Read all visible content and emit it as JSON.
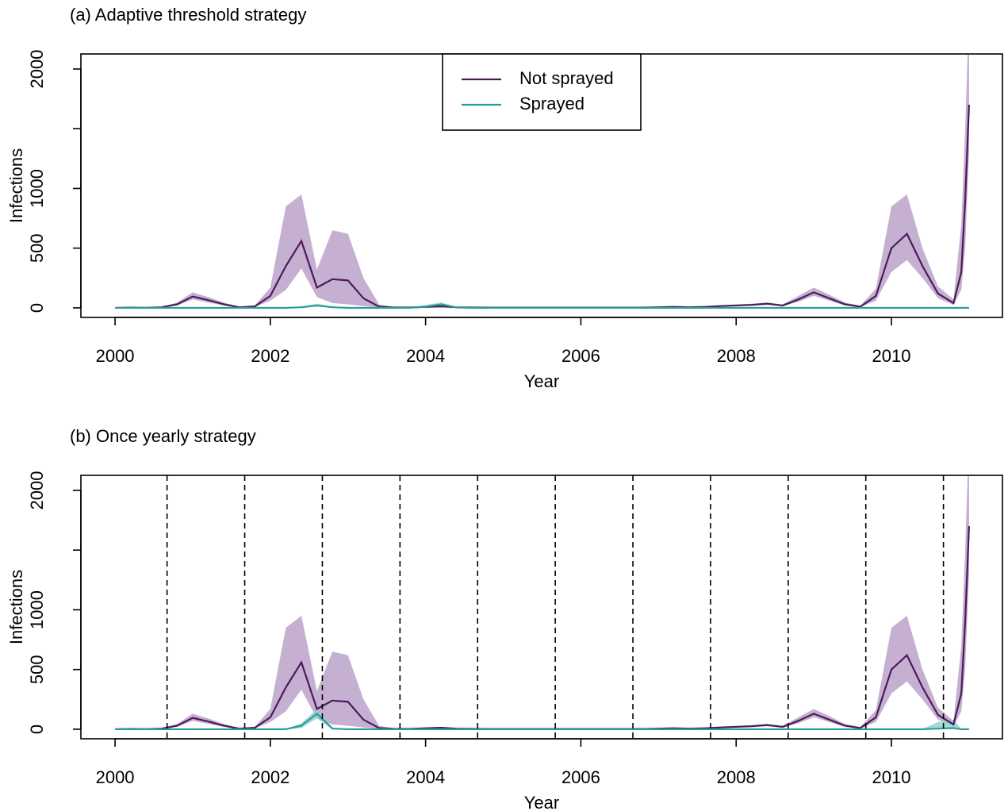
{
  "chart_data": [
    {
      "type": "line",
      "title": "(a) Adaptive threshold strategy",
      "xlabel": "Year",
      "ylabel": "Infections",
      "x": [
        2000.0,
        2000.2,
        2000.4,
        2000.6,
        2000.8,
        2001.0,
        2001.2,
        2001.4,
        2001.6,
        2001.8,
        2002.0,
        2002.2,
        2002.4,
        2002.6,
        2002.8,
        2003.0,
        2003.2,
        2003.4,
        2003.6,
        2003.8,
        2004.0,
        2004.2,
        2004.4,
        2004.6,
        2004.8,
        2005.0,
        2005.2,
        2005.4,
        2005.6,
        2005.8,
        2006.0,
        2006.2,
        2006.4,
        2006.6,
        2006.8,
        2007.0,
        2007.2,
        2007.4,
        2007.6,
        2007.8,
        2008.0,
        2008.2,
        2008.4,
        2008.6,
        2008.8,
        2009.0,
        2009.2,
        2009.4,
        2009.6,
        2009.8,
        2010.0,
        2010.2,
        2010.4,
        2010.6,
        2010.8,
        2010.9,
        2010.95,
        2011.0
      ],
      "series": [
        {
          "name": "Not sprayed",
          "color": "#4b1a5a",
          "band_color": "#b89cc6",
          "values": [
            0,
            2,
            1,
            5,
            30,
            95,
            65,
            30,
            5,
            12,
            100,
            350,
            560,
            170,
            240,
            230,
            80,
            10,
            3,
            3,
            8,
            12,
            5,
            3,
            2,
            2,
            2,
            2,
            2,
            2,
            2,
            2,
            2,
            2,
            2,
            5,
            8,
            5,
            8,
            15,
            20,
            25,
            35,
            20,
            70,
            130,
            80,
            30,
            10,
            100,
            500,
            620,
            350,
            120,
            40,
            300,
            900,
            1700
          ],
          "lower": [
            0,
            1,
            0,
            3,
            20,
            70,
            45,
            20,
            3,
            8,
            60,
            150,
            330,
            90,
            40,
            30,
            15,
            3,
            1,
            1,
            4,
            6,
            3,
            2,
            1,
            1,
            1,
            1,
            1,
            1,
            1,
            1,
            1,
            1,
            1,
            3,
            5,
            3,
            5,
            10,
            15,
            18,
            25,
            15,
            50,
            100,
            60,
            20,
            6,
            60,
            300,
            400,
            250,
            80,
            25,
            150,
            500,
            1300
          ],
          "upper": [
            2,
            4,
            2,
            8,
            45,
            130,
            90,
            45,
            10,
            20,
            170,
            850,
            950,
            320,
            650,
            620,
            250,
            30,
            6,
            6,
            14,
            20,
            8,
            5,
            4,
            4,
            4,
            4,
            4,
            4,
            4,
            4,
            4,
            4,
            4,
            8,
            12,
            8,
            12,
            22,
            28,
            35,
            45,
            28,
            100,
            170,
            110,
            45,
            18,
            160,
            850,
            950,
            500,
            180,
            70,
            700,
            1500,
            2500
          ]
        },
        {
          "name": "Sprayed",
          "color": "#2a9d9a",
          "band_color": "#8fd0cc",
          "values": [
            0,
            0,
            0,
            0,
            0,
            0,
            0,
            0,
            0,
            0,
            0,
            0,
            5,
            20,
            5,
            0,
            0,
            0,
            0,
            0,
            10,
            30,
            3,
            0,
            0,
            0,
            0,
            0,
            0,
            0,
            0,
            0,
            0,
            0,
            0,
            0,
            0,
            0,
            0,
            0,
            0,
            0,
            0,
            0,
            0,
            0,
            0,
            0,
            0,
            0,
            0,
            0,
            0,
            0,
            0,
            0,
            0,
            0
          ],
          "lower": [
            0,
            0,
            0,
            0,
            0,
            0,
            0,
            0,
            0,
            0,
            0,
            0,
            0,
            10,
            0,
            0,
            0,
            0,
            0,
            0,
            5,
            15,
            0,
            0,
            0,
            0,
            0,
            0,
            0,
            0,
            0,
            0,
            0,
            0,
            0,
            0,
            0,
            0,
            0,
            0,
            0,
            0,
            0,
            0,
            0,
            0,
            0,
            0,
            0,
            0,
            0,
            0,
            0,
            0,
            0,
            0,
            0,
            0
          ],
          "upper": [
            2,
            2,
            2,
            2,
            2,
            2,
            2,
            2,
            2,
            2,
            2,
            2,
            12,
            35,
            12,
            2,
            2,
            2,
            2,
            2,
            25,
            45,
            8,
            2,
            2,
            2,
            2,
            2,
            2,
            2,
            2,
            2,
            2,
            2,
            2,
            2,
            2,
            2,
            2,
            2,
            2,
            2,
            2,
            2,
            2,
            2,
            2,
            2,
            2,
            2,
            2,
            2,
            2,
            2,
            2,
            2,
            2,
            2
          ]
        }
      ],
      "xlim": [
        1999.56,
        2011.43
      ],
      "ylim": [
        -80,
        2126
      ],
      "xticks": [
        2000,
        2002,
        2004,
        2006,
        2008,
        2010
      ],
      "yticks": [
        0,
        500,
        1000,
        {
          "value": 1500,
          "label": null
        },
        2000
      ],
      "legend": "top"
    },
    {
      "type": "line",
      "title": "(b) Once yearly strategy",
      "xlabel": "Year",
      "ylabel": "Infections",
      "x": [
        2000.0,
        2000.2,
        2000.4,
        2000.6,
        2000.8,
        2001.0,
        2001.2,
        2001.4,
        2001.6,
        2001.8,
        2002.0,
        2002.2,
        2002.4,
        2002.6,
        2002.8,
        2003.0,
        2003.2,
        2003.4,
        2003.6,
        2003.8,
        2004.0,
        2004.2,
        2004.4,
        2004.6,
        2004.8,
        2005.0,
        2005.2,
        2005.4,
        2005.6,
        2005.8,
        2006.0,
        2006.2,
        2006.4,
        2006.6,
        2006.8,
        2007.0,
        2007.2,
        2007.4,
        2007.6,
        2007.8,
        2008.0,
        2008.2,
        2008.4,
        2008.6,
        2008.8,
        2009.0,
        2009.2,
        2009.4,
        2009.6,
        2009.8,
        2010.0,
        2010.2,
        2010.4,
        2010.6,
        2010.8,
        2010.9,
        2010.95,
        2011.0
      ],
      "series": [
        {
          "name": "Not sprayed",
          "color": "#4b1a5a",
          "band_color": "#b89cc6",
          "values": [
            0,
            2,
            1,
            5,
            30,
            95,
            65,
            30,
            5,
            12,
            100,
            350,
            560,
            170,
            240,
            230,
            80,
            10,
            3,
            3,
            8,
            12,
            5,
            3,
            2,
            2,
            2,
            2,
            2,
            2,
            2,
            2,
            2,
            2,
            2,
            5,
            8,
            5,
            8,
            15,
            20,
            25,
            35,
            20,
            70,
            130,
            80,
            30,
            10,
            100,
            500,
            620,
            350,
            120,
            40,
            300,
            900,
            1700
          ],
          "lower": [
            0,
            1,
            0,
            3,
            20,
            70,
            45,
            20,
            3,
            8,
            60,
            150,
            330,
            90,
            40,
            30,
            15,
            3,
            1,
            1,
            4,
            6,
            3,
            2,
            1,
            1,
            1,
            1,
            1,
            1,
            1,
            1,
            1,
            1,
            1,
            3,
            5,
            3,
            5,
            10,
            15,
            18,
            25,
            15,
            50,
            100,
            60,
            20,
            6,
            60,
            300,
            400,
            250,
            80,
            25,
            150,
            500,
            1300
          ],
          "upper": [
            2,
            4,
            2,
            8,
            45,
            130,
            90,
            45,
            10,
            20,
            170,
            850,
            950,
            320,
            650,
            620,
            250,
            30,
            6,
            6,
            14,
            20,
            8,
            5,
            4,
            4,
            4,
            4,
            4,
            4,
            4,
            4,
            4,
            4,
            4,
            8,
            12,
            8,
            12,
            22,
            28,
            35,
            45,
            28,
            100,
            170,
            110,
            45,
            18,
            160,
            850,
            950,
            500,
            180,
            70,
            700,
            1500,
            2500
          ]
        },
        {
          "name": "Sprayed",
          "color": "#2a9d9a",
          "band_color": "#8fd0cc",
          "values": [
            0,
            0,
            0,
            0,
            0,
            0,
            0,
            0,
            0,
            0,
            0,
            0,
            30,
            130,
            5,
            0,
            0,
            0,
            0,
            0,
            0,
            0,
            0,
            0,
            0,
            0,
            0,
            0,
            0,
            0,
            0,
            0,
            0,
            0,
            0,
            0,
            0,
            0,
            0,
            0,
            0,
            0,
            0,
            0,
            0,
            0,
            0,
            0,
            0,
            0,
            0,
            0,
            0,
            5,
            10,
            0,
            0,
            0
          ],
          "lower": [
            0,
            0,
            0,
            0,
            0,
            0,
            0,
            0,
            0,
            0,
            0,
            0,
            10,
            90,
            0,
            0,
            0,
            0,
            0,
            0,
            0,
            0,
            0,
            0,
            0,
            0,
            0,
            0,
            0,
            0,
            0,
            0,
            0,
            0,
            0,
            0,
            0,
            0,
            0,
            0,
            0,
            0,
            0,
            0,
            0,
            0,
            0,
            0,
            0,
            0,
            0,
            0,
            0,
            0,
            0,
            0,
            0,
            0
          ],
          "upper": [
            2,
            2,
            2,
            2,
            2,
            2,
            2,
            2,
            2,
            2,
            2,
            2,
            50,
            170,
            15,
            2,
            2,
            2,
            2,
            2,
            2,
            2,
            2,
            2,
            2,
            2,
            2,
            2,
            2,
            2,
            2,
            2,
            2,
            2,
            2,
            2,
            2,
            2,
            2,
            2,
            2,
            2,
            2,
            2,
            2,
            2,
            2,
            2,
            2,
            2,
            2,
            2,
            2,
            60,
            80,
            2,
            2,
            2
          ]
        }
      ],
      "xlim": [
        1999.56,
        2011.43
      ],
      "ylim": [
        -80,
        2126
      ],
      "xticks": [
        2000,
        2002,
        2004,
        2006,
        2008,
        2010
      ],
      "yticks": [
        0,
        500,
        1000,
        {
          "value": 1500,
          "label": null
        },
        2000
      ],
      "spray_times": [
        2000.67,
        2001.67,
        2002.67,
        2003.67,
        2004.67,
        2005.67,
        2006.67,
        2007.67,
        2008.67,
        2009.67,
        2010.67
      ]
    }
  ]
}
